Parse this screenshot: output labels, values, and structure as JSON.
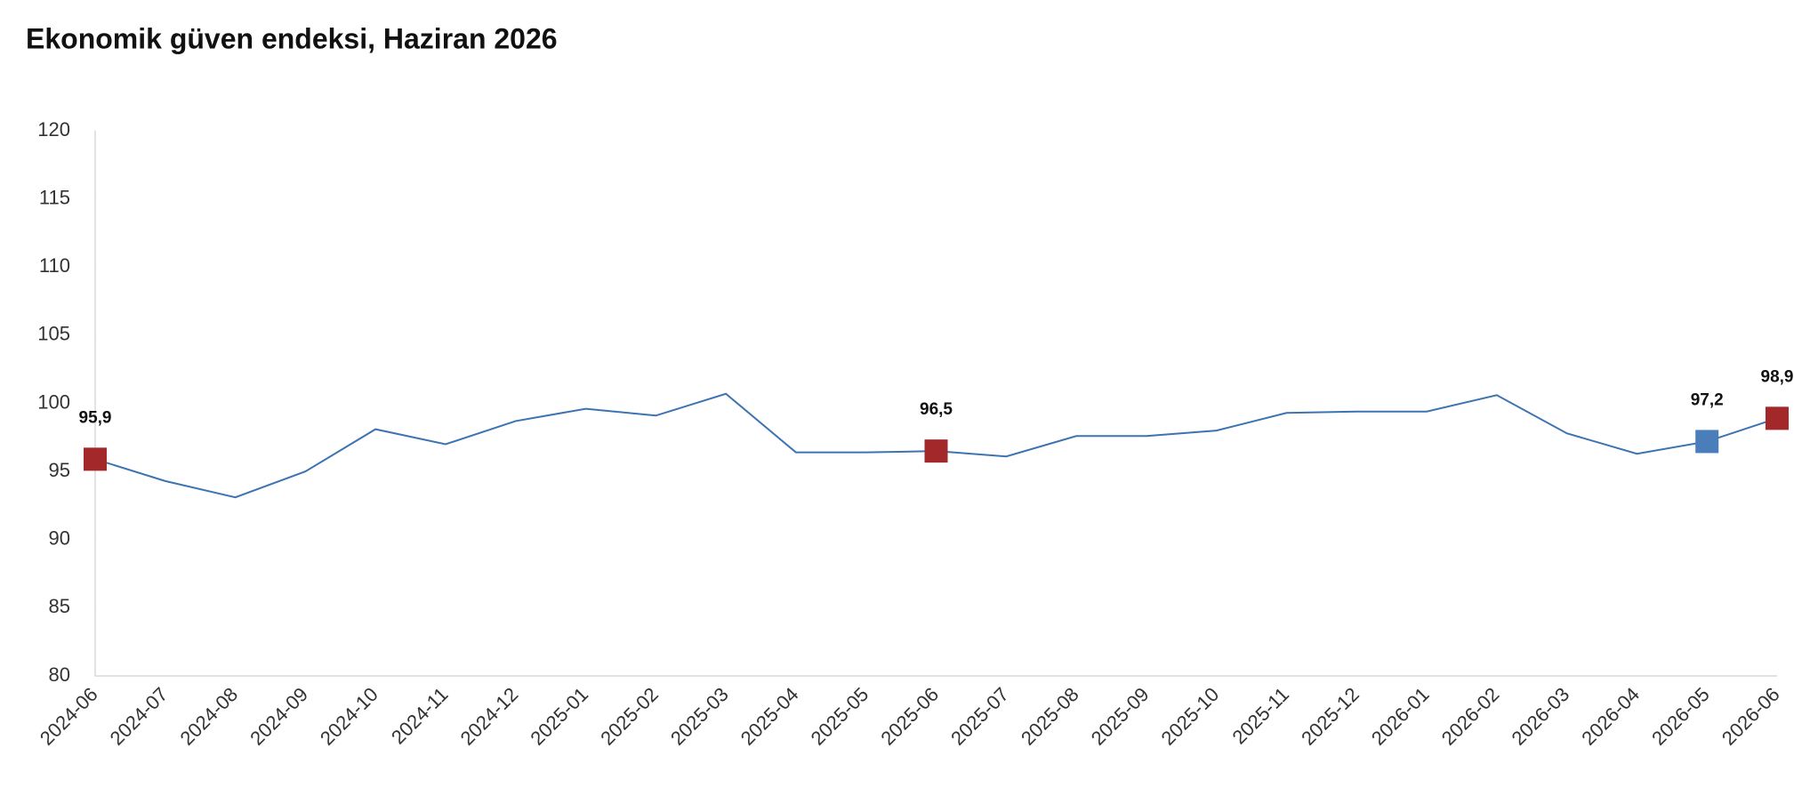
{
  "chart_data": {
    "type": "line",
    "title": "Ekonomik güven endeksi, Haziran 2026",
    "x": [
      "2024-06",
      "2024-07",
      "2024-08",
      "2024-09",
      "2024-10",
      "2024-11",
      "2024-12",
      "2025-01",
      "2025-02",
      "2025-03",
      "2025-04",
      "2025-05",
      "2025-06",
      "2025-07",
      "2025-08",
      "2025-09",
      "2025-10",
      "2025-11",
      "2025-12",
      "2026-01",
      "2026-02",
      "2026-03",
      "2026-04",
      "2026-05",
      "2026-06"
    ],
    "series": [
      {
        "name": "Ekonomik güven endeksi",
        "color": "#3d73b1",
        "values": [
          95.9,
          94.3,
          93.1,
          95.0,
          98.1,
          97.0,
          98.7,
          99.6,
          99.1,
          100.7,
          96.4,
          96.4,
          96.5,
          96.1,
          97.6,
          97.6,
          98.0,
          99.3,
          99.4,
          99.4,
          100.6,
          97.8,
          96.3,
          97.2,
          98.9
        ],
        "value_labels": [
          "95,9",
          null,
          null,
          null,
          null,
          null,
          null,
          null,
          null,
          null,
          null,
          null,
          "96,5",
          null,
          null,
          null,
          null,
          null,
          null,
          null,
          null,
          null,
          null,
          "97,2",
          "98,9"
        ],
        "marker_colors": [
          "#a3282a",
          null,
          null,
          null,
          null,
          null,
          null,
          null,
          null,
          null,
          null,
          null,
          "#a3282a",
          null,
          null,
          null,
          null,
          null,
          null,
          null,
          null,
          null,
          null,
          "#4a7ebb",
          "#a3282a"
        ]
      }
    ],
    "ylim": [
      80,
      120
    ],
    "yticks": [
      80,
      85,
      90,
      95,
      100,
      105,
      110,
      115,
      120
    ],
    "grid": false
  }
}
